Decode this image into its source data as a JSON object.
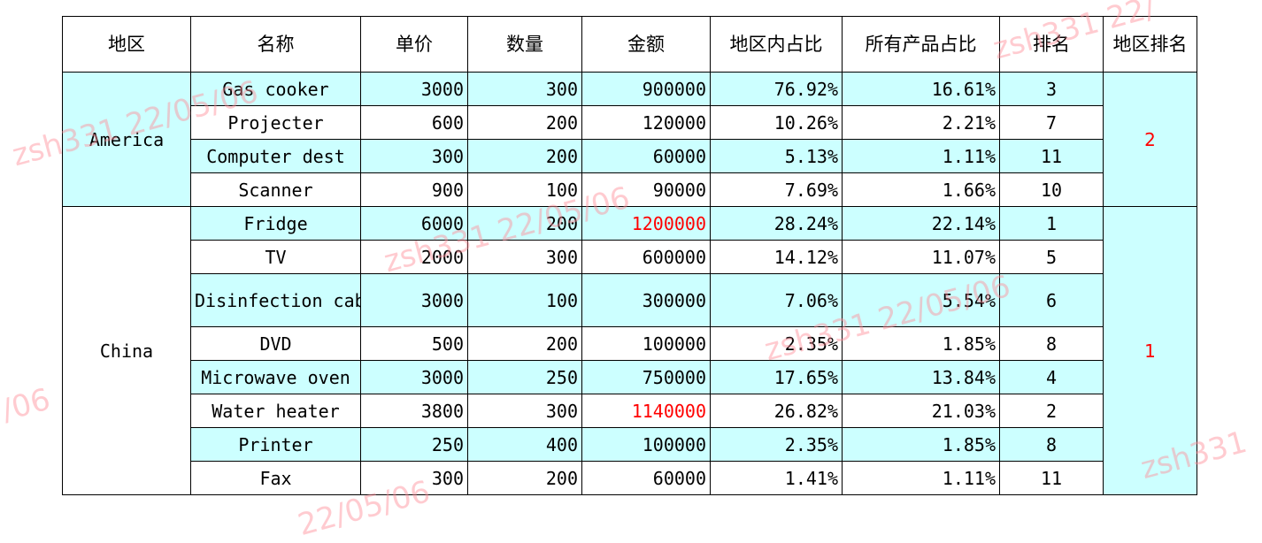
{
  "headers": [
    "地区",
    "名称",
    "单价",
    "数量",
    "金额",
    "地区内占比",
    "所有产品占比",
    "排名",
    "地区排名"
  ],
  "colors": {
    "highlight": "#ccffff",
    "accent_red": "#ff0000",
    "watermark": "#ff8c96"
  },
  "regions": [
    {
      "name": "America",
      "region_rank": "2",
      "rows": [
        {
          "name": "Gas cooker",
          "price": "3000",
          "qty": "300",
          "amount": "900000",
          "region_pct": "76.92%",
          "all_pct": "16.61%",
          "rank": "3"
        },
        {
          "name": "Projecter",
          "price": "600",
          "qty": "200",
          "amount": "120000",
          "region_pct": "10.26%",
          "all_pct": "2.21%",
          "rank": "7"
        },
        {
          "name": "Computer dest",
          "price": "300",
          "qty": "200",
          "amount": "60000",
          "region_pct": "5.13%",
          "all_pct": "1.11%",
          "rank": "11"
        },
        {
          "name": "Scanner",
          "price": "900",
          "qty": "100",
          "amount": "90000",
          "region_pct": "7.69%",
          "all_pct": "1.66%",
          "rank": "10"
        }
      ]
    },
    {
      "name": "China",
      "region_rank": "1",
      "rows": [
        {
          "name": "Fridge",
          "price": "6000",
          "qty": "200",
          "amount": "1200000",
          "region_pct": "28.24%",
          "all_pct": "22.14%",
          "rank": "1"
        },
        {
          "name": "TV",
          "price": "2000",
          "qty": "300",
          "amount": "600000",
          "region_pct": "14.12%",
          "all_pct": "11.07%",
          "rank": "5"
        },
        {
          "name": "Disinfection cabinet",
          "price": "3000",
          "qty": "100",
          "amount": "300000",
          "region_pct": "7.06%",
          "all_pct": "5.54%",
          "rank": "6"
        },
        {
          "name": "DVD",
          "price": "500",
          "qty": "200",
          "amount": "100000",
          "region_pct": "2.35%",
          "all_pct": "1.85%",
          "rank": "8"
        },
        {
          "name": "Microwave oven",
          "price": "3000",
          "qty": "250",
          "amount": "750000",
          "region_pct": "17.65%",
          "all_pct": "13.84%",
          "rank": "4"
        },
        {
          "name": "Water heater",
          "price": "3800",
          "qty": "300",
          "amount": "1140000",
          "region_pct": "26.82%",
          "all_pct": "21.03%",
          "rank": "2"
        },
        {
          "name": "Printer",
          "price": "250",
          "qty": "400",
          "amount": "100000",
          "region_pct": "2.35%",
          "all_pct": "1.85%",
          "rank": "8"
        },
        {
          "name": "Fax",
          "price": "300",
          "qty": "200",
          "amount": "60000",
          "region_pct": "1.41%",
          "all_pct": "1.11%",
          "rank": "11"
        }
      ]
    }
  ],
  "watermarks": [
    "zsh331 22/05/06",
    "zsh331 22/05/06",
    "zsh331 22/05/06",
    "zsh331 22/",
    "/06",
    "zsh331",
    "22/05/06"
  ]
}
